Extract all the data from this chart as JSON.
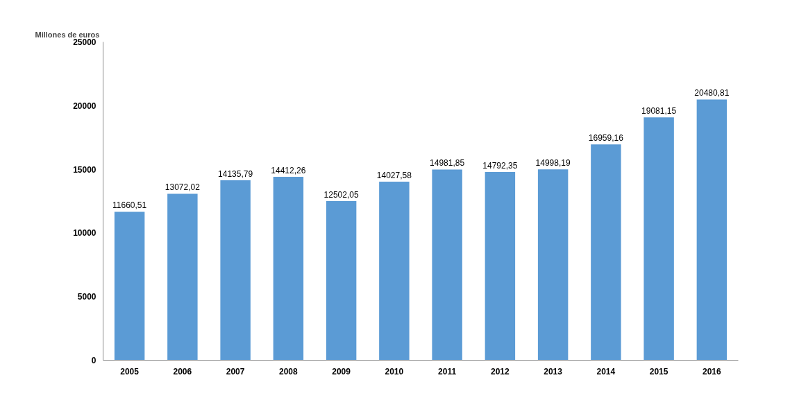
{
  "chart_data": {
    "type": "bar",
    "ylabel": "Millones de euros",
    "categories": [
      "2005",
      "2006",
      "2007",
      "2008",
      "2009",
      "2010",
      "2011",
      "2012",
      "2013",
      "2014",
      "2015",
      "2016"
    ],
    "values": [
      11660.51,
      13072.02,
      14135.79,
      14412.26,
      12502.05,
      14027.58,
      14981.85,
      14792.35,
      14998.19,
      16959.16,
      19081.15,
      20480.81
    ],
    "value_labels": [
      "11660,51",
      "13072,02",
      "14135,79",
      "14412,26",
      "12502,05",
      "14027,58",
      "14981,85",
      "14792,35",
      "14998,19",
      "16959,16",
      "19081,15",
      "20480,81"
    ],
    "color": "#5b9bd5",
    "ylim": [
      0,
      25000
    ],
    "yticks": [
      0,
      5000,
      10000,
      15000,
      20000,
      25000
    ],
    "grid": false
  }
}
